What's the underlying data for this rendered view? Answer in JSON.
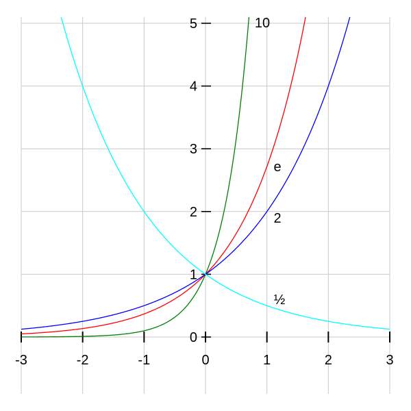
{
  "chart_data": {
    "type": "line",
    "title": "",
    "xlabel": "",
    "ylabel": "",
    "xlim": [
      -3,
      3
    ],
    "ylim": [
      0,
      5
    ],
    "grid": true,
    "x_ticks": [
      "-3",
      "-2",
      "-1",
      "0",
      "1",
      "2",
      "3"
    ],
    "y_ticks": [
      "0",
      "1",
      "2",
      "3",
      "4",
      "5"
    ],
    "series": [
      {
        "name": "10",
        "function": "10^x",
        "base": 10,
        "color": "#008000",
        "label": "10"
      },
      {
        "name": "e",
        "function": "e^x",
        "base": 2.718281828,
        "color": "#ff0000",
        "label": "e"
      },
      {
        "name": "2",
        "function": "2^x",
        "base": 2,
        "color": "#0000ff",
        "label": "2"
      },
      {
        "name": "1/2",
        "function": "(1/2)^x",
        "base": 0.5,
        "color": "#00ffff",
        "label": "½"
      }
    ]
  }
}
